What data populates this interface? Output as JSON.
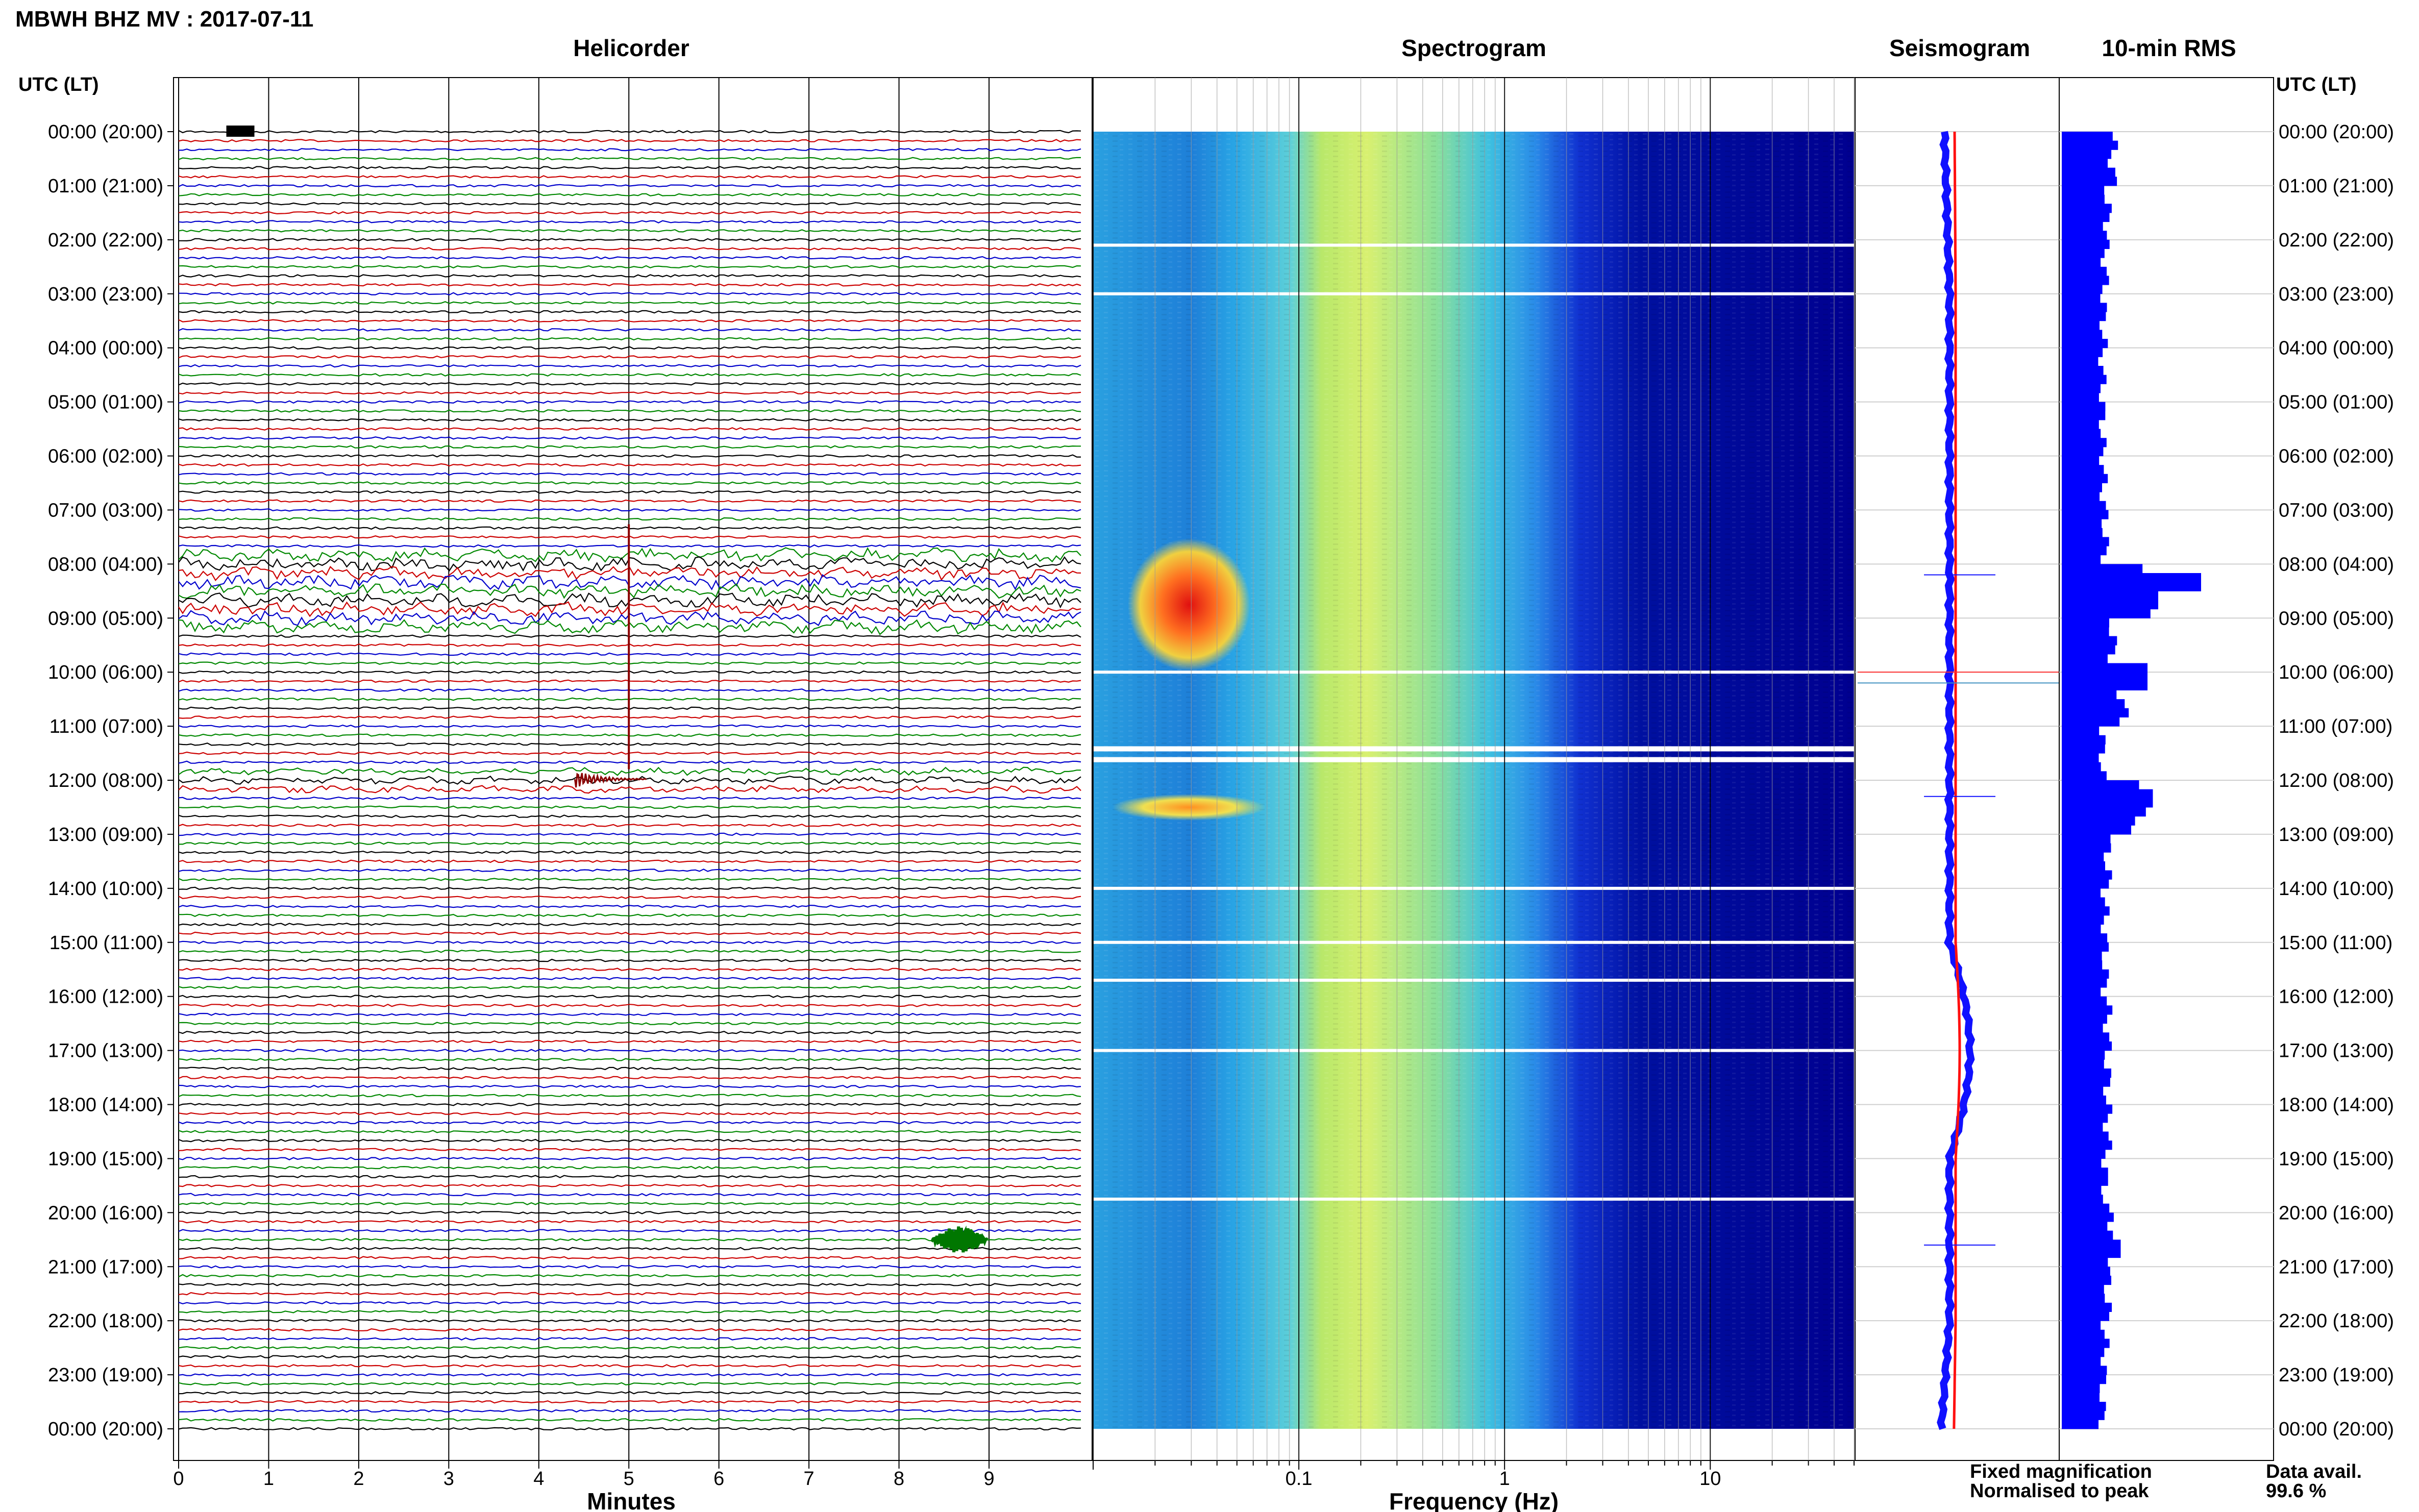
{
  "header": {
    "station_title": "MBWH BHZ MV : 2017-07-11"
  },
  "panels": {
    "helicorder_title": "Helicorder",
    "spectrogram_title": "Spectrogram",
    "seismogram_title": "Seismogram",
    "rms_title": "10-min RMS"
  },
  "axes": {
    "left_time_header": "UTC (LT)",
    "right_time_header": "UTC (LT)",
    "helicorder_xlabel": "Minutes",
    "spectrogram_xlabel": "Frequency (Hz)"
  },
  "legend": {
    "fixed_label": "Fixed magnification",
    "normalised_label": "Normalised to peak",
    "fixed_color": "#1010ff",
    "normalised_color": "#ff1010"
  },
  "availability": {
    "label": "Data avail.",
    "value": "99.6 %"
  },
  "colors": {
    "trace_cycle": [
      "#000000",
      "#cc0000",
      "#0000cc",
      "#008800"
    ],
    "rms_bar": "#0000ff",
    "spectrogram_base": "#000090"
  },
  "chart_data": [
    {
      "type": "line",
      "name_panel": "helicorder",
      "x_label": "Minutes",
      "x_ticks": [
        0,
        1,
        2,
        3,
        4,
        5,
        6,
        7,
        8,
        9
      ],
      "xlim": [
        0,
        10
      ],
      "time_labels_utc_lt": [
        "00:00 (20:00)",
        "01:00 (21:00)",
        "02:00 (22:00)",
        "03:00 (23:00)",
        "04:00 (00:00)",
        "05:00 (01:00)",
        "06:00 (02:00)",
        "07:00 (03:00)",
        "08:00 (04:00)",
        "09:00 (05:00)",
        "10:00 (06:00)",
        "11:00 (07:00)",
        "12:00 (08:00)",
        "13:00 (09:00)",
        "14:00 (10:00)",
        "15:00 (11:00)",
        "16:00 (12:00)",
        "17:00 (13:00)",
        "18:00 (14:00)",
        "19:00 (15:00)",
        "20:00 (16:00)",
        "21:00 (17:00)",
        "22:00 (18:00)",
        "23:00 (19:00)",
        "00:00 (20:00)"
      ],
      "rows_per_hour": 6,
      "events": [
        {
          "hour": 0.0,
          "minute": 0.7,
          "note": "burst"
        },
        {
          "hour": 7.83,
          "minute": 5.0,
          "note": "spike"
        },
        {
          "hour": 11.98,
          "minute": 4.4,
          "note": "event"
        },
        {
          "hour": 20.5,
          "minute": 8.7,
          "note": "event"
        }
      ]
    },
    {
      "type": "heatmap",
      "name_panel": "spectrogram",
      "x_label": "Frequency (Hz)",
      "x_scale": "log",
      "x_tick_labels": [
        "0.1",
        "1",
        "10"
      ],
      "xlim": [
        0.01,
        50
      ],
      "time_range_hours": [
        0,
        24
      ]
    },
    {
      "type": "line",
      "name_panel": "seismogram",
      "time_range_hours": [
        0,
        24
      ],
      "series": [
        {
          "name": "Fixed magnification",
          "color": "#1010ff"
        },
        {
          "name": "Normalised to peak",
          "color": "#ff1010"
        }
      ]
    },
    {
      "type": "bar",
      "name_panel": "10-min RMS",
      "orientation": "horizontal",
      "bins_per_hour": 6,
      "values_hourly_relative": [
        1.0,
        0.9,
        0.85,
        0.82,
        0.8,
        0.8,
        0.82,
        0.85,
        1.6,
        1.0,
        1.2,
        0.8,
        1.5,
        0.9,
        0.85,
        0.85,
        0.9,
        0.9,
        0.9,
        0.85,
        1.0,
        0.9,
        0.85,
        0.8
      ],
      "peaks": [
        {
          "hour": 8.2,
          "value": 2.6
        },
        {
          "hour": 8.5,
          "value": 1.8
        },
        {
          "hour": 10.0,
          "value": 1.6
        },
        {
          "hour": 12.3,
          "value": 1.7
        },
        {
          "hour": 20.6,
          "value": 1.1
        }
      ]
    }
  ]
}
